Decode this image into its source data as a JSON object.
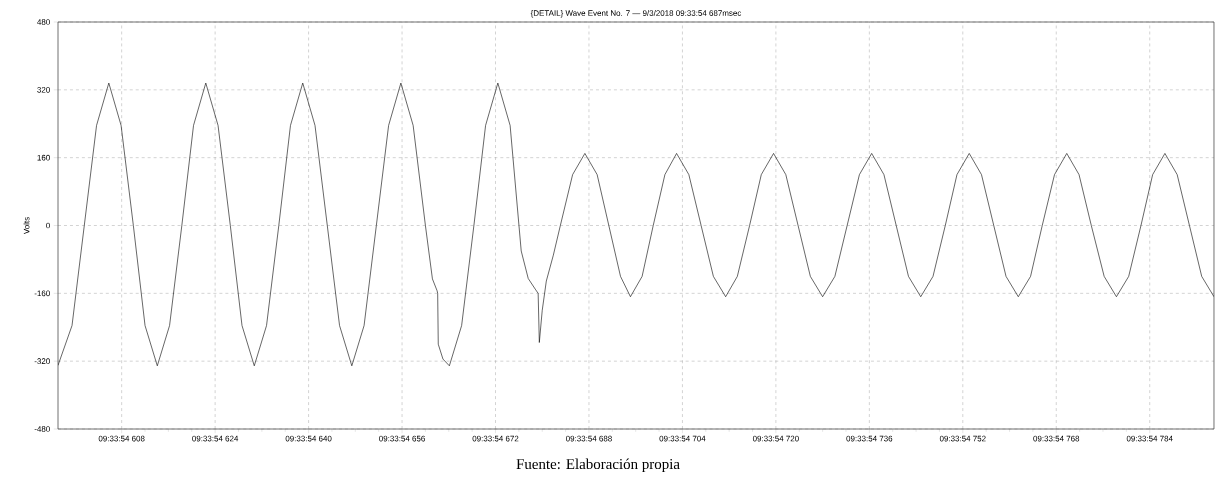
{
  "chart_data": {
    "type": "line",
    "title": "{DETAIL} Wave Event No. 7 —  9/3/2018 09:33:54 687msec",
    "ylabel": "Volts",
    "annotations": [
      "Fuente: Elaboración propia"
    ],
    "xlim": [
      "2018-09-03T09:33:54.597100",
      "2018-09-03T09:33:54.795000"
    ],
    "ylim": [
      -480,
      480
    ],
    "xticks": [
      {
        "value": "2018-09-03T09:33:54.608000",
        "label": "09:33:54 608"
      },
      {
        "value": "2018-09-03T09:33:54.624000",
        "label": "09:33:54 624"
      },
      {
        "value": "2018-09-03T09:33:54.640000",
        "label": "09:33:54 640"
      },
      {
        "value": "2018-09-03T09:33:54.656000",
        "label": "09:33:54 656"
      },
      {
        "value": "2018-09-03T09:33:54.672000",
        "label": "09:33:54 672"
      },
      {
        "value": "2018-09-03T09:33:54.688000",
        "label": "09:33:54 688"
      },
      {
        "value": "2018-09-03T09:33:54.704000",
        "label": "09:33:54 704"
      },
      {
        "value": "2018-09-03T09:33:54.720000",
        "label": "09:33:54 720"
      },
      {
        "value": "2018-09-03T09:33:54.736000",
        "label": "09:33:54 736"
      },
      {
        "value": "2018-09-03T09:33:54.752000",
        "label": "09:33:54 752"
      },
      {
        "value": "2018-09-03T09:33:54.768000",
        "label": "09:33:54 768"
      },
      {
        "value": "2018-09-03T09:33:54.784000",
        "label": "09:33:54 784"
      }
    ],
    "yticks": [
      -480,
      -320,
      -160,
      0,
      160,
      320,
      480
    ],
    "grid": true,
    "marker": "none",
    "line_style": "solid",
    "series": [
      {
        "color": "#000000",
        "x": [
          "2018-09-03T09:33:54.597100",
          "2018-09-03T09:33:54.599500",
          "2018-09-03T09:33:54.601600",
          "2018-09-03T09:33:54.603700",
          "2018-09-03T09:33:54.605800",
          "2018-09-03T09:33:54.607900",
          "2018-09-03T09:33:54.610000",
          "2018-09-03T09:33:54.612000",
          "2018-09-03T09:33:54.614100",
          "2018-09-03T09:33:54.616200",
          "2018-09-03T09:33:54.618300",
          "2018-09-03T09:33:54.620300",
          "2018-09-03T09:33:54.622400",
          "2018-09-03T09:33:54.624500",
          "2018-09-03T09:33:54.626600",
          "2018-09-03T09:33:54.628600",
          "2018-09-03T09:33:54.630700",
          "2018-09-03T09:33:54.632800",
          "2018-09-03T09:33:54.634900",
          "2018-09-03T09:33:54.636900",
          "2018-09-03T09:33:54.639000",
          "2018-09-03T09:33:54.641100",
          "2018-09-03T09:33:54.643200",
          "2018-09-03T09:33:54.645300",
          "2018-09-03T09:33:54.647400",
          "2018-09-03T09:33:54.649500",
          "2018-09-03T09:33:54.651600",
          "2018-09-03T09:33:54.653700",
          "2018-09-03T09:33:54.655800",
          "2018-09-03T09:33:54.657900",
          "2018-09-03T09:33:54.660000",
          "2018-09-03T09:33:54.661200",
          "2018-09-03T09:33:54.662000",
          "2018-09-03T09:33:54.662100",
          "2018-09-03T09:33:54.662200",
          "2018-09-03T09:33:54.663000",
          "2018-09-03T09:33:54.664100",
          "2018-09-03T09:33:54.666200",
          "2018-09-03T09:33:54.668300",
          "2018-09-03T09:33:54.670300",
          "2018-09-03T09:33:54.672400",
          "2018-09-03T09:33:54.674500",
          "2018-09-03T09:33:54.676400",
          "2018-09-03T09:33:54.677600",
          "2018-09-03T09:33:54.678800",
          "2018-09-03T09:33:54.679300",
          "2018-09-03T09:33:54.679500",
          "2018-09-03T09:33:54.680000",
          "2018-09-03T09:33:54.680700",
          "2018-09-03T09:33:54.681900",
          "2018-09-03T09:33:54.683100",
          "2018-09-03T09:33:54.685200",
          "2018-09-03T09:33:54.687300",
          "2018-09-03T09:33:54.689400",
          "2018-09-03T09:33:54.691400",
          "2018-09-03T09:33:54.693400",
          "2018-09-03T09:33:54.695100",
          "2018-09-03T09:33:54.697100",
          "2018-09-03T09:33:54.699000",
          "2018-09-03T09:33:54.701000",
          "2018-09-03T09:33:54.703000",
          "2018-09-03T09:33:54.705100",
          "2018-09-03T09:33:54.707200",
          "2018-09-03T09:33:54.709300",
          "2018-09-03T09:33:54.711400",
          "2018-09-03T09:33:54.713400",
          "2018-09-03T09:33:54.715500",
          "2018-09-03T09:33:54.717500",
          "2018-09-03T09:33:54.719600",
          "2018-09-03T09:33:54.721700",
          "2018-09-03T09:33:54.723800",
          "2018-09-03T09:33:54.725900",
          "2018-09-03T09:33:54.728000",
          "2018-09-03T09:33:54.730100",
          "2018-09-03T09:33:54.732200",
          "2018-09-03T09:33:54.734300",
          "2018-09-03T09:33:54.736400",
          "2018-09-03T09:33:54.738500",
          "2018-09-03T09:33:54.740600",
          "2018-09-03T09:33:54.742700",
          "2018-09-03T09:33:54.744800",
          "2018-09-03T09:33:54.746900",
          "2018-09-03T09:33:54.749000",
          "2018-09-03T09:33:54.751000",
          "2018-09-03T09:33:54.753100",
          "2018-09-03T09:33:54.755200",
          "2018-09-03T09:33:54.757300",
          "2018-09-03T09:33:54.759400",
          "2018-09-03T09:33:54.761500",
          "2018-09-03T09:33:54.763600",
          "2018-09-03T09:33:54.765600",
          "2018-09-03T09:33:54.767700",
          "2018-09-03T09:33:54.769800",
          "2018-09-03T09:33:54.771900",
          "2018-09-03T09:33:54.774000",
          "2018-09-03T09:33:54.776200",
          "2018-09-03T09:33:54.778300",
          "2018-09-03T09:33:54.780400",
          "2018-09-03T09:33:54.782500",
          "2018-09-03T09:33:54.784500",
          "2018-09-03T09:33:54.786600",
          "2018-09-03T09:33:54.788700",
          "2018-09-03T09:33:54.790800",
          "2018-09-03T09:33:54.792900",
          "2018-09-03T09:33:54.795000"
        ],
        "values": [
          -330,
          -236,
          0,
          236,
          336,
          236,
          0,
          -236,
          -331,
          -236,
          0,
          236,
          336,
          236,
          0,
          -236,
          -331,
          -236,
          0,
          236,
          336,
          236,
          0,
          -236,
          -331,
          -236,
          0,
          236,
          336,
          236,
          0,
          -126,
          -154,
          -160,
          -280,
          -315,
          -331,
          -236,
          0,
          236,
          336,
          236,
          -60,
          -125,
          -150,
          -160,
          -276,
          -200,
          -131,
          -70,
          0,
          120,
          170,
          120,
          0,
          -120,
          -168,
          -120,
          0,
          120,
          170,
          120,
          0,
          -120,
          -168,
          -120,
          0,
          120,
          170,
          120,
          0,
          -120,
          -168,
          -120,
          0,
          120,
          170,
          120,
          0,
          -120,
          -168,
          -120,
          0,
          120,
          170,
          120,
          0,
          -120,
          -168,
          -120,
          0,
          120,
          170,
          120,
          0,
          -120,
          -168,
          -120,
          0,
          120,
          170,
          120,
          0,
          -120,
          -168
        ]
      }
    ]
  }
}
